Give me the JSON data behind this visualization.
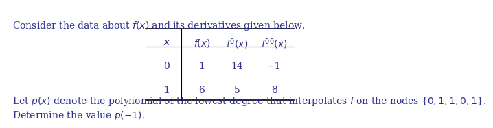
{
  "title_text": "Consider the data about $f(x)$ and its derivatives given below.",
  "col_headers": [
    "$x$",
    "$f(x)$",
    "$f\\prime(x)$",
    "$f\\prime\\prime(x)$"
  ],
  "row0": [
    "0",
    "1",
    "14",
    "−1"
  ],
  "row1": [
    "1",
    "6",
    "5",
    "8"
  ],
  "bottom_line1": "Let $p(x)$ denote the polynomial of the lowest degree that interpolates $f$ on the nodes $\\{ 0, 1, 1, 0, 1 \\}$.",
  "bottom_line2": "Determine the value $p(-1)$.",
  "text_color": "#2e318b",
  "font_size": 10.0,
  "table_font_size": 10.0
}
